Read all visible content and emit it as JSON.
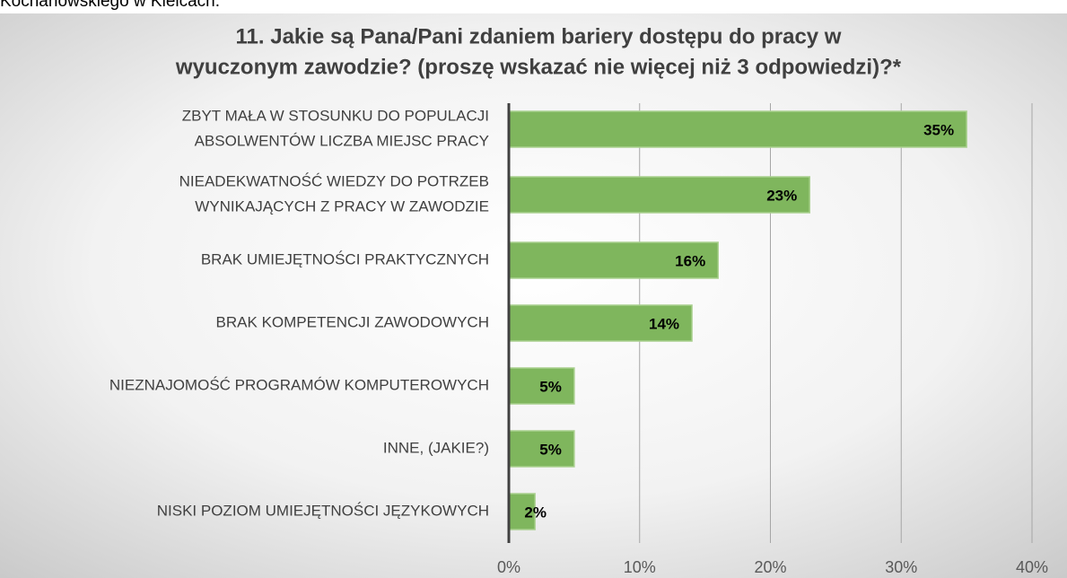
{
  "caption_above": "Kochanowskiego w Kielcach.",
  "chart_data": {
    "type": "barh",
    "title": [
      "11. Jakie są Pana/Pani zdaniem bariery dostępu do pracy w",
      "wyuczonym zawodzie? (proszę wskazać nie więcej niż 3 odpowiedzi)?*"
    ],
    "categories": [
      [
        "ZBYT MAŁA W STOSUNKU DO POPULACJI",
        "ABSOLWENTÓW LICZBA  MIEJSC PRACY"
      ],
      [
        "NIEADEKWATNOŚĆ WIEDZY DO POTRZEB",
        "WYNIKAJĄCYCH Z PRACY W ZAWODZIE"
      ],
      [
        "BRAK UMIEJĘTNOŚCI PRAKTYCZNYCH"
      ],
      [
        "BRAK KOMPETENCJI ZAWODOWYCH"
      ],
      [
        "NIEZNAJOMOŚĆ PROGRAMÓW KOMPUTEROWYCH"
      ],
      [
        "INNE, (JAKIE?)"
      ],
      [
        "NISKI POZIOM UMIEJĘTNOŚCI JĘZYKOWYCH"
      ]
    ],
    "values": [
      35,
      23,
      16,
      14,
      5,
      5,
      2
    ],
    "value_labels": [
      "35%",
      "23%",
      "16%",
      "14%",
      "5%",
      "5%",
      "2%"
    ],
    "color": "#7fb65d",
    "xlim": [
      0,
      40
    ],
    "xticks": [
      {
        "value": 0,
        "label": "0%"
      },
      {
        "value": 10,
        "label": "10%"
      },
      {
        "value": 20,
        "label": "20%"
      },
      {
        "value": 30,
        "label": "30%"
      },
      {
        "value": 40,
        "label": "40%"
      }
    ],
    "grid": true
  }
}
